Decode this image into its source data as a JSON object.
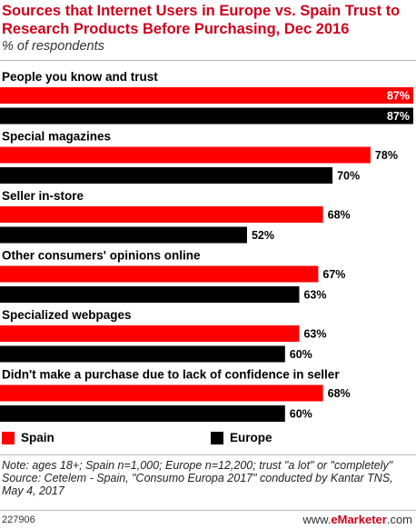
{
  "chart_data": {
    "type": "bar",
    "orientation": "horizontal",
    "title": "Sources that Internet Users in Europe vs. Spain Trust to Research Products Before Purchasing, Dec 2016",
    "subtitle": "% of respondents",
    "categories": [
      "People you know and trust",
      "Special magazines",
      "Seller in-store",
      "Other consumers' opinions online",
      "Specialized webpages",
      "Didn't make a purchase due to lack of confidence in seller"
    ],
    "series": [
      {
        "name": "Spain",
        "color": "#ff0000",
        "values": [
          87,
          78,
          68,
          67,
          63,
          68
        ]
      },
      {
        "name": "Europe",
        "color": "#000000",
        "values": [
          87,
          70,
          52,
          63,
          60,
          60
        ]
      }
    ],
    "value_suffix": "%",
    "xlim": [
      0,
      87
    ],
    "legend_position": "bottom-left",
    "grid": false
  },
  "note": "Note: ages 18+; Spain n=1,000; Europe n=12,200; trust \"a lot\" or \"completely\"",
  "source": "Source: Cetelem - Spain, \"Consumo Europa 2017\" conducted by Kantar TNS, May 4, 2017",
  "footer": {
    "id": "227906",
    "brand_prefix": "www.",
    "brand_name": "eMarketer",
    "brand_suffix": ".com"
  }
}
